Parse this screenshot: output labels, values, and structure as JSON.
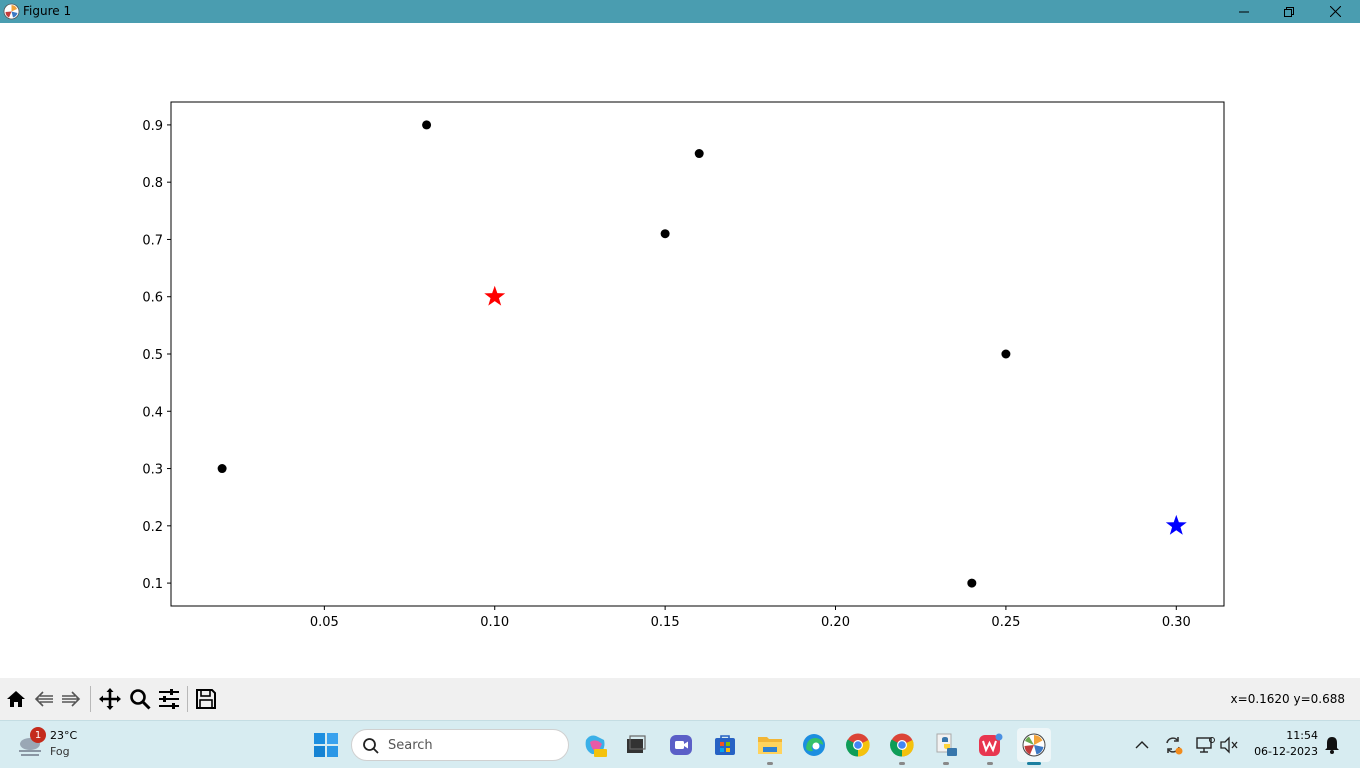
{
  "window": {
    "title": "Figure 1"
  },
  "window_controls": {
    "minimize": "minimize",
    "maximize": "restore",
    "close": "close"
  },
  "chart_data": {
    "type": "scatter",
    "title": "",
    "xlabel": "",
    "ylabel": "",
    "xlim": [
      0.005,
      0.314
    ],
    "ylim": [
      0.06,
      0.94
    ],
    "xticks": [
      0.05,
      0.1,
      0.15,
      0.2,
      0.25,
      0.3
    ],
    "xtick_labels": [
      "0.05",
      "0.10",
      "0.15",
      "0.20",
      "0.25",
      "0.30"
    ],
    "yticks": [
      0.1,
      0.2,
      0.3,
      0.4,
      0.5,
      0.6,
      0.7,
      0.8,
      0.9
    ],
    "ytick_labels": [
      "0.1",
      "0.2",
      "0.3",
      "0.4",
      "0.5",
      "0.6",
      "0.7",
      "0.8",
      "0.9"
    ],
    "grid": false,
    "series": [
      {
        "marker": "circle",
        "color": "#000000",
        "points": [
          {
            "x": 0.02,
            "y": 0.3
          },
          {
            "x": 0.08,
            "y": 0.9
          },
          {
            "x": 0.15,
            "y": 0.71
          },
          {
            "x": 0.16,
            "y": 0.85
          },
          {
            "x": 0.24,
            "y": 0.1
          },
          {
            "x": 0.25,
            "y": 0.5
          }
        ]
      },
      {
        "marker": "star",
        "color": "#ff0000",
        "points": [
          {
            "x": 0.1,
            "y": 0.6
          }
        ]
      },
      {
        "marker": "star",
        "color": "#0000ff",
        "points": [
          {
            "x": 0.3,
            "y": 0.2
          }
        ]
      }
    ]
  },
  "toolbar": {
    "tools": [
      "home-icon",
      "back-icon",
      "forward-icon",
      "pan-icon",
      "zoom-icon",
      "configure-subplots-icon",
      "save-icon"
    ],
    "coords": "x=0.1620 y=0.688"
  },
  "taskbar": {
    "weather": {
      "badge": "1",
      "temp": "23°C",
      "condition": "Fog"
    },
    "search_placeholder": "Search",
    "apps": [
      "copilot-pre-icon",
      "file-viewer-icon",
      "meet-icon",
      "store-icon",
      "file-explorer-icon",
      "edge-icon",
      "chrome-icon",
      "chrome-profile-icon",
      "python-icon",
      "wps-office-icon",
      "matplotlib-figure-icon"
    ],
    "clock": {
      "time": "11:54",
      "date": "06-12-2023"
    }
  }
}
